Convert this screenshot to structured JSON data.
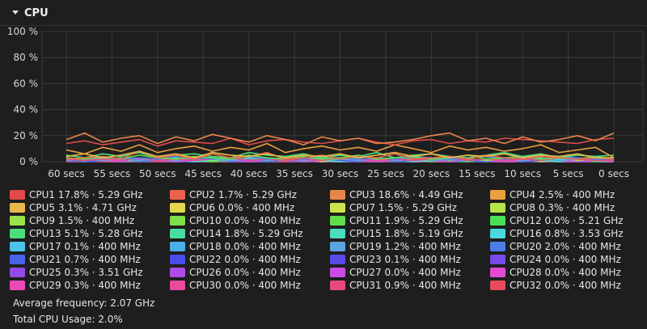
{
  "header": {
    "title": "CPU"
  },
  "chart_data": {
    "type": "line",
    "title": "",
    "xlabel": "",
    "ylabel": "",
    "ylim": [
      0,
      100
    ],
    "xlim": [
      60,
      0
    ],
    "y_ticks": [
      "100 %",
      "80 %",
      "60 %",
      "40 %",
      "20 %",
      "0 %"
    ],
    "x_ticks": [
      "60 secs",
      "55 secs",
      "50 secs",
      "45 secs",
      "40 secs",
      "35 secs",
      "30 secs",
      "25 secs",
      "20 secs",
      "15 secs",
      "10 secs",
      "5 secs",
      "0 secs"
    ],
    "grid": true,
    "series": [
      {
        "name": "CPU1",
        "color": "#e04a4a",
        "values": [
          14,
          16,
          13,
          15,
          17,
          12,
          16,
          15,
          14,
          18,
          13,
          16,
          17,
          15,
          14,
          16,
          18,
          15,
          13,
          16,
          17,
          14,
          16,
          15,
          18,
          17,
          16,
          15,
          14,
          17,
          18
        ]
      },
      {
        "name": "CPU2",
        "color": "#e8634a",
        "values": [
          2,
          3,
          4,
          2,
          8,
          3,
          5,
          2,
          6,
          3,
          4,
          7,
          2,
          3,
          5,
          2,
          4,
          3,
          6,
          2,
          3,
          4,
          2,
          5,
          3,
          2,
          4,
          3,
          2,
          3,
          2
        ]
      },
      {
        "name": "CPU3",
        "color": "#e8864a",
        "values": [
          17,
          22,
          15,
          18,
          20,
          14,
          19,
          16,
          21,
          18,
          15,
          20,
          17,
          13,
          19,
          16,
          18,
          14,
          15,
          17,
          20,
          22,
          16,
          18,
          14,
          19,
          15,
          17,
          20,
          16,
          22
        ]
      },
      {
        "name": "CPU4",
        "color": "#eaa03e",
        "values": [
          9,
          6,
          11,
          8,
          13,
          7,
          10,
          12,
          8,
          11,
          9,
          14,
          7,
          10,
          12,
          9,
          11,
          8,
          13,
          10,
          7,
          12,
          9,
          11,
          8,
          10,
          13,
          7,
          9,
          11,
          3
        ]
      },
      {
        "name": "CPU5",
        "color": "#e8b84a",
        "values": [
          4,
          6,
          3,
          5,
          8,
          4,
          6,
          3,
          7,
          5,
          4,
          6,
          3,
          5,
          4,
          6,
          3,
          5,
          7,
          4,
          6,
          3,
          5,
          4,
          6,
          3,
          5,
          4,
          6,
          3,
          3
        ]
      },
      {
        "name": "CPU6",
        "color": "#e4d94a",
        "values": [
          1,
          0,
          2,
          1,
          0,
          1,
          0,
          2,
          1,
          0,
          1,
          0,
          1,
          2,
          0,
          1,
          0,
          1,
          0,
          2,
          1,
          0,
          1,
          0,
          1,
          0,
          2,
          1,
          0,
          1,
          0
        ]
      },
      {
        "name": "CPU7",
        "color": "#cfe24a",
        "values": [
          2,
          1,
          3,
          2,
          1,
          2,
          3,
          1,
          2,
          1,
          3,
          2,
          1,
          2,
          1,
          3,
          2,
          1,
          2,
          3,
          1,
          2,
          1,
          2,
          3,
          1,
          2,
          1,
          2,
          1,
          2
        ]
      },
      {
        "name": "CPU8",
        "color": "#b6e24a",
        "values": [
          1,
          0,
          1,
          0,
          1,
          2,
          0,
          1,
          0,
          1,
          0,
          1,
          2,
          0,
          1,
          0,
          1,
          0,
          1,
          0,
          2,
          1,
          0,
          1,
          0,
          1,
          0,
          1,
          0,
          1,
          0
        ]
      },
      {
        "name": "CPU9",
        "color": "#9be24a",
        "values": [
          2,
          1,
          2,
          3,
          1,
          2,
          1,
          2,
          1,
          3,
          2,
          1,
          2,
          1,
          2,
          3,
          1,
          2,
          1,
          2,
          1,
          3,
          2,
          1,
          2,
          1,
          2,
          3,
          1,
          2,
          2
        ]
      },
      {
        "name": "CPU10",
        "color": "#7fe04a",
        "values": [
          0,
          1,
          0,
          0,
          1,
          0,
          1,
          0,
          0,
          1,
          0,
          0,
          1,
          0,
          0,
          1,
          0,
          1,
          0,
          0,
          1,
          0,
          0,
          1,
          0,
          0,
          1,
          0,
          0,
          1,
          0
        ]
      },
      {
        "name": "CPU11",
        "color": "#62de4a",
        "values": [
          3,
          2,
          4,
          2,
          5,
          3,
          2,
          4,
          3,
          2,
          5,
          3,
          2,
          4,
          2,
          3,
          5,
          2,
          3,
          4,
          2,
          3,
          5,
          2,
          3,
          4,
          2,
          3,
          2,
          4,
          2
        ]
      },
      {
        "name": "CPU12",
        "color": "#4ade58",
        "values": [
          1,
          0,
          1,
          2,
          0,
          1,
          0,
          1,
          0,
          1,
          2,
          0,
          1,
          0,
          1,
          0,
          1,
          2,
          0,
          1,
          0,
          1,
          0,
          1,
          2,
          0,
          1,
          0,
          1,
          0,
          0
        ]
      },
      {
        "name": "CPU13",
        "color": "#4ade7c",
        "values": [
          5,
          3,
          6,
          4,
          7,
          3,
          5,
          6,
          4,
          3,
          7,
          5,
          4,
          6,
          3,
          5,
          4,
          7,
          3,
          5,
          6,
          4,
          3,
          5,
          7,
          4,
          6,
          3,
          5,
          4,
          5
        ]
      },
      {
        "name": "CPU14",
        "color": "#4ade9e",
        "values": [
          2,
          1,
          3,
          2,
          1,
          2,
          3,
          1,
          2,
          1,
          2,
          3,
          1,
          2,
          1,
          2,
          3,
          1,
          2,
          1,
          3,
          2,
          1,
          2,
          1,
          2,
          3,
          1,
          2,
          1,
          2
        ]
      },
      {
        "name": "CPU15",
        "color": "#4adec0",
        "values": [
          2,
          3,
          1,
          2,
          3,
          1,
          2,
          3,
          2,
          1,
          3,
          2,
          1,
          2,
          3,
          2,
          1,
          3,
          2,
          1,
          2,
          3,
          1,
          2,
          3,
          2,
          1,
          2,
          3,
          1,
          2
        ]
      },
      {
        "name": "CPU16",
        "color": "#4ad9de",
        "values": [
          1,
          2,
          1,
          0,
          1,
          2,
          1,
          0,
          1,
          2,
          1,
          0,
          1,
          2,
          1,
          0,
          1,
          2,
          1,
          0,
          1,
          2,
          1,
          0,
          1,
          2,
          1,
          0,
          1,
          2,
          1
        ]
      },
      {
        "name": "CPU17",
        "color": "#4ac4e8",
        "values": [
          0,
          1,
          0,
          0,
          1,
          0,
          0,
          1,
          0,
          0,
          1,
          0,
          0,
          1,
          0,
          0,
          1,
          0,
          0,
          1,
          0,
          0,
          1,
          0,
          0,
          1,
          0,
          0,
          1,
          0,
          0
        ]
      },
      {
        "name": "CPU18",
        "color": "#4ab0e8",
        "values": [
          0,
          0,
          1,
          0,
          0,
          1,
          0,
          0,
          1,
          0,
          0,
          1,
          0,
          0,
          1,
          0,
          0,
          1,
          0,
          0,
          1,
          0,
          0,
          1,
          0,
          0,
          1,
          0,
          0,
          1,
          0
        ]
      },
      {
        "name": "CPU19",
        "color": "#5aa2e0",
        "values": [
          1,
          2,
          1,
          3,
          1,
          2,
          1,
          2,
          3,
          1,
          2,
          1,
          2,
          1,
          3,
          2,
          1,
          2,
          1,
          3,
          1,
          2,
          1,
          2,
          3,
          1,
          2,
          1,
          2,
          1,
          1
        ]
      },
      {
        "name": "CPU20",
        "color": "#4a7ee8",
        "values": [
          3,
          2,
          4,
          2,
          3,
          2,
          4,
          3,
          2,
          3,
          4,
          2,
          3,
          2,
          4,
          3,
          2,
          3,
          2,
          4,
          3,
          2,
          3,
          4,
          2,
          3,
          2,
          4,
          3,
          2,
          2
        ]
      },
      {
        "name": "CPU21",
        "color": "#4a62e8",
        "values": [
          1,
          0,
          1,
          2,
          0,
          1,
          0,
          1,
          2,
          0,
          1,
          0,
          1,
          0,
          2,
          1,
          0,
          1,
          0,
          1,
          2,
          0,
          1,
          0,
          1,
          0,
          1,
          2,
          0,
          1,
          1
        ]
      },
      {
        "name": "CPU22",
        "color": "#4a4ee8",
        "values": [
          0,
          1,
          0,
          0,
          0,
          1,
          0,
          0,
          0,
          1,
          0,
          0,
          0,
          1,
          0,
          0,
          0,
          1,
          0,
          0,
          0,
          1,
          0,
          0,
          0,
          1,
          0,
          0,
          0,
          1,
          0
        ]
      },
      {
        "name": "CPU23",
        "color": "#5c4ae8",
        "values": [
          0,
          0,
          1,
          0,
          0,
          0,
          1,
          0,
          0,
          0,
          1,
          0,
          0,
          0,
          1,
          0,
          0,
          0,
          1,
          0,
          0,
          0,
          1,
          0,
          0,
          0,
          1,
          0,
          0,
          0,
          0
        ]
      },
      {
        "name": "CPU24",
        "color": "#784ae8",
        "values": [
          1,
          0,
          0,
          1,
          0,
          0,
          1,
          0,
          0,
          1,
          0,
          0,
          1,
          0,
          0,
          1,
          0,
          0,
          1,
          0,
          0,
          1,
          0,
          0,
          1,
          0,
          0,
          1,
          0,
          0,
          0
        ]
      },
      {
        "name": "CPU25",
        "color": "#944ae8",
        "values": [
          1,
          0,
          1,
          0,
          1,
          0,
          1,
          0,
          1,
          0,
          1,
          0,
          1,
          0,
          1,
          0,
          1,
          0,
          1,
          0,
          1,
          0,
          1,
          0,
          1,
          0,
          1,
          0,
          1,
          0,
          0
        ]
      },
      {
        "name": "CPU26",
        "color": "#b04ae8",
        "values": [
          0,
          1,
          0,
          1,
          0,
          0,
          1,
          0,
          1,
          0,
          0,
          1,
          0,
          1,
          0,
          0,
          1,
          0,
          1,
          0,
          0,
          1,
          0,
          1,
          0,
          0,
          1,
          0,
          1,
          0,
          0
        ]
      },
      {
        "name": "CPU27",
        "color": "#cc4ae8",
        "values": [
          1,
          2,
          1,
          0,
          2,
          1,
          0,
          1,
          2,
          1,
          0,
          1,
          2,
          0,
          1,
          2,
          1,
          0,
          1,
          2,
          1,
          0,
          2,
          1,
          0,
          1,
          2,
          1,
          0,
          1,
          0
        ]
      },
      {
        "name": "CPU28",
        "color": "#e24ad6",
        "values": [
          0,
          1,
          0,
          1,
          0,
          1,
          0,
          1,
          0,
          1,
          0,
          1,
          0,
          1,
          0,
          1,
          0,
          1,
          0,
          1,
          0,
          1,
          0,
          1,
          0,
          1,
          0,
          1,
          0,
          1,
          0
        ]
      },
      {
        "name": "CPU29",
        "color": "#e84ab8",
        "values": [
          1,
          0,
          1,
          1,
          0,
          1,
          0,
          1,
          1,
          0,
          1,
          0,
          1,
          1,
          0,
          1,
          0,
          1,
          1,
          0,
          1,
          0,
          1,
          1,
          0,
          1,
          0,
          1,
          1,
          0,
          0
        ]
      },
      {
        "name": "CPU30",
        "color": "#e84a9c",
        "values": [
          0,
          0,
          1,
          0,
          0,
          0,
          1,
          0,
          0,
          0,
          1,
          0,
          0,
          0,
          1,
          0,
          0,
          0,
          1,
          0,
          0,
          0,
          1,
          0,
          0,
          0,
          1,
          0,
          0,
          0,
          0
        ]
      },
      {
        "name": "CPU31",
        "color": "#e84a7e",
        "values": [
          2,
          1,
          2,
          1,
          3,
          1,
          2,
          1,
          2,
          3,
          1,
          2,
          1,
          2,
          1,
          3,
          2,
          1,
          2,
          1,
          2,
          3,
          1,
          2,
          1,
          2,
          1,
          3,
          2,
          1,
          1
        ]
      },
      {
        "name": "CPU32",
        "color": "#e84a5c",
        "values": [
          0,
          1,
          0,
          0,
          1,
          0,
          0,
          1,
          0,
          0,
          1,
          0,
          0,
          1,
          0,
          0,
          1,
          0,
          0,
          1,
          0,
          0,
          1,
          0,
          0,
          1,
          0,
          0,
          1,
          0,
          0
        ]
      }
    ]
  },
  "legend": [
    {
      "name": "CPU1",
      "detail": "17.8% · 5.29 GHz",
      "color": "#e04a4a"
    },
    {
      "name": "CPU2",
      "detail": "1.7% · 5.29 GHz",
      "color": "#e8634a"
    },
    {
      "name": "CPU3",
      "detail": "18.6% · 4.49 GHz",
      "color": "#e8864a"
    },
    {
      "name": "CPU4",
      "detail": "2.5% · 400 MHz",
      "color": "#eaa03e"
    },
    {
      "name": "CPU5",
      "detail": "3.1% · 4.71 GHz",
      "color": "#e8b84a"
    },
    {
      "name": "CPU6",
      "detail": "0.0% · 400 MHz",
      "color": "#e4d94a"
    },
    {
      "name": "CPU7",
      "detail": "1.5% · 5.29 GHz",
      "color": "#cfe24a"
    },
    {
      "name": "CPU8",
      "detail": "0.3% · 400 MHz",
      "color": "#b6e24a"
    },
    {
      "name": "CPU9",
      "detail": "1.5% · 400 MHz",
      "color": "#9be24a"
    },
    {
      "name": "CPU10",
      "detail": "0.0% · 400 MHz",
      "color": "#7fe04a"
    },
    {
      "name": "CPU11",
      "detail": "1.9% · 5.29 GHz",
      "color": "#62de4a"
    },
    {
      "name": "CPU12",
      "detail": "0.0% · 5.21 GHz",
      "color": "#4ade58"
    },
    {
      "name": "CPU13",
      "detail": "5.1% · 5.28 GHz",
      "color": "#4ade7c"
    },
    {
      "name": "CPU14",
      "detail": "1.8% · 5.29 GHz",
      "color": "#4ade9e"
    },
    {
      "name": "CPU15",
      "detail": "1.8% · 5.19 GHz",
      "color": "#4adec0"
    },
    {
      "name": "CPU16",
      "detail": "0.8% · 3.53 GHz",
      "color": "#4ad9de"
    },
    {
      "name": "CPU17",
      "detail": "0.1% · 400 MHz",
      "color": "#4ac4e8"
    },
    {
      "name": "CPU18",
      "detail": "0.0% · 400 MHz",
      "color": "#4ab0e8"
    },
    {
      "name": "CPU19",
      "detail": "1.2% · 400 MHz",
      "color": "#5aa2e0"
    },
    {
      "name": "CPU20",
      "detail": "2.0% · 400 MHz",
      "color": "#4a7ee8"
    },
    {
      "name": "CPU21",
      "detail": "0.7% · 400 MHz",
      "color": "#4a62e8"
    },
    {
      "name": "CPU22",
      "detail": "0.0% · 400 MHz",
      "color": "#4a4ee8"
    },
    {
      "name": "CPU23",
      "detail": "0.1% · 400 MHz",
      "color": "#5c4ae8"
    },
    {
      "name": "CPU24",
      "detail": "0.0% · 400 MHz",
      "color": "#784ae8"
    },
    {
      "name": "CPU25",
      "detail": "0.3% · 3.51 GHz",
      "color": "#944ae8"
    },
    {
      "name": "CPU26",
      "detail": "0.0% · 400 MHz",
      "color": "#b04ae8"
    },
    {
      "name": "CPU27",
      "detail": "0.0% · 400 MHz",
      "color": "#cc4ae8"
    },
    {
      "name": "CPU28",
      "detail": "0.0% · 400 MHz",
      "color": "#e24ad6"
    },
    {
      "name": "CPU29",
      "detail": "0.3% · 400 MHz",
      "color": "#e84ab8"
    },
    {
      "name": "CPU30",
      "detail": "0.0% · 400 MHz",
      "color": "#e84a9c"
    },
    {
      "name": "CPU31",
      "detail": "0.9% · 400 MHz",
      "color": "#e84a7e"
    },
    {
      "name": "CPU32",
      "detail": "0.0% · 400 MHz",
      "color": "#e84a5c"
    }
  ],
  "stats": {
    "avg_frequency": "Average frequency: 2.07 GHz",
    "total_usage": "Total CPU Usage: 2.0%"
  }
}
